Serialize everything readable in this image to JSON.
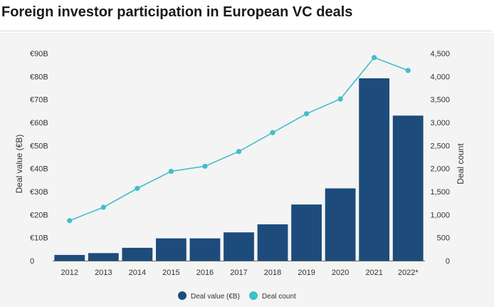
{
  "header": {
    "title": "Foreign investor participation in European VC deals"
  },
  "chart_data": {
    "type": "bar",
    "categories": [
      "2012",
      "2013",
      "2014",
      "2015",
      "2016",
      "2017",
      "2018",
      "2019",
      "2020",
      "2021",
      "2022*"
    ],
    "series": [
      {
        "name": "Deal value (€B)",
        "type": "bar",
        "axis": "left",
        "color": "#1d4c7c",
        "values": [
          2.5,
          3.3,
          5.6,
          9.7,
          9.7,
          12.3,
          15.8,
          24.4,
          31.4,
          79.2,
          63.0
        ]
      },
      {
        "name": "Deal count",
        "type": "line",
        "axis": "right",
        "color": "#40bec9",
        "values": [
          870,
          1160,
          1570,
          1940,
          2050,
          2370,
          2780,
          3190,
          3510,
          4410,
          4130
        ]
      }
    ],
    "ylabel": "Deal value (€B)",
    "y2label": "Deal count",
    "ylim": [
      0,
      90
    ],
    "y2lim": [
      0,
      4500
    ],
    "yticks": [
      "0",
      "€10B",
      "€20B",
      "€30B",
      "€40B",
      "€50B",
      "€60B",
      "€70B",
      "€80B",
      "€90B"
    ],
    "y2ticks": [
      "0",
      "500",
      "1,000",
      "1,500",
      "2,000",
      "2,500",
      "3,000",
      "3,500",
      "4,000",
      "4,500"
    ],
    "grid": false,
    "legend_position": "bottom-center"
  }
}
